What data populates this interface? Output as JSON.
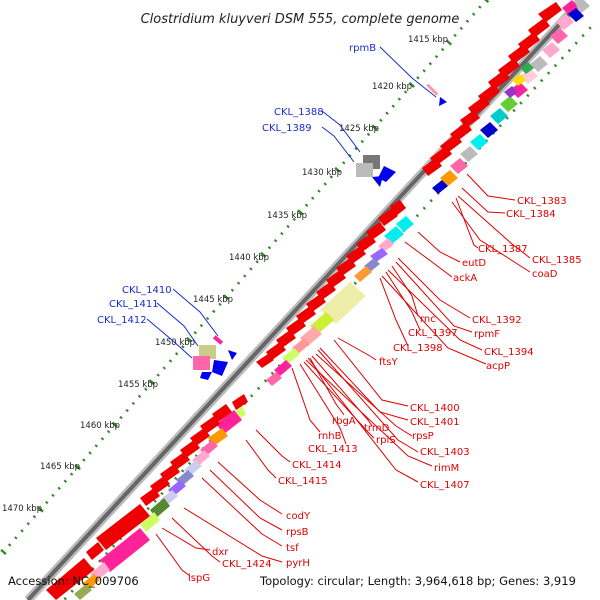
{
  "title": "Clostridium kluyveri DSM 555, complete genome",
  "footer": {
    "accession": "Accession: NC_009706",
    "topology": "Topology: circular; Length: 3,964,618 bp; Genes: 3,919"
  },
  "colors": {
    "forward_label": "#1a2bd0",
    "reverse_label": "#e00000",
    "dots": "#2e8b22",
    "backbone": "#666666"
  },
  "scale_ticks": [
    "1415 kbp",
    "1420 kbp",
    "1425 kbp",
    "1430 kbp",
    "1435 kbp",
    "1440 kbp",
    "1445 kbp",
    "1450 kbp",
    "1455 kbp",
    "1460 kbp",
    "1465 kbp",
    "1470 kbp"
  ],
  "forward_labels": [
    "rpmB",
    "CKL_1388",
    "CKL_1389",
    "CKL_1410",
    "CKL_1411",
    "CKL_1412"
  ],
  "reverse_labels": [
    "CKL_1383",
    "CKL_1384",
    "CKL_1387",
    "CKL_1385",
    "coaD",
    "eutD",
    "ackA",
    "CKL_1392",
    "rnc",
    "rpmF",
    "CKL_1397",
    "CKL_1394",
    "CKL_1398",
    "acpP",
    "ftsY",
    "CKL_1400",
    "CKL_1401",
    "rbgA",
    "rpsP",
    "trmD",
    "CKL_1403",
    "rnhB",
    "rplS",
    "CKL_1413",
    "rimM",
    "CKL_1407",
    "CKL_1414",
    "CKL_1415",
    "codY",
    "rpsB",
    "tsf",
    "dxr",
    "CKL_1424",
    "pyrH",
    "ispG"
  ]
}
